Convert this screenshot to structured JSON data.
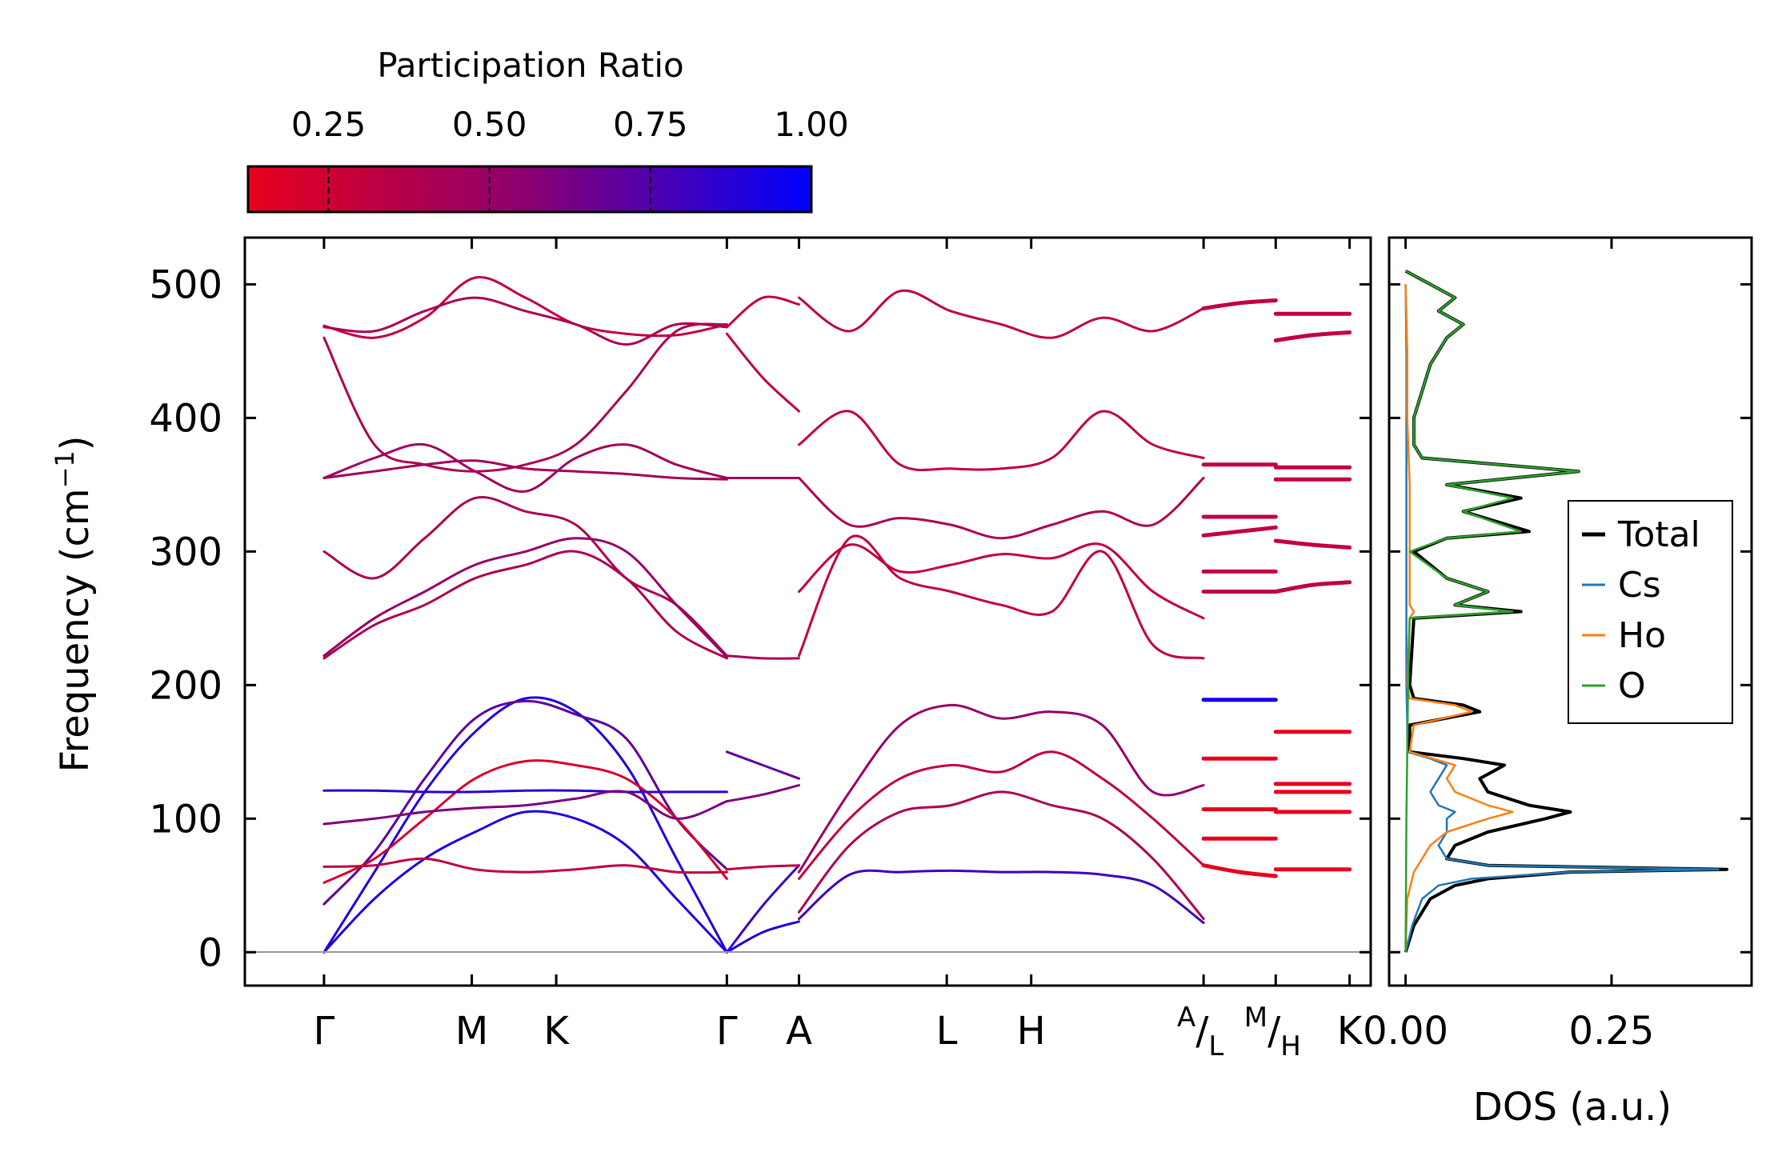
{
  "colorbar": {
    "title": "Participation Ratio",
    "range": [
      0.125,
      1.0
    ],
    "ticks": [
      0.25,
      0.5,
      0.75,
      1.0
    ],
    "tick_labels": [
      "0.25",
      "0.50",
      "0.75",
      "1.00"
    ],
    "colors": [
      "#e8001c",
      "#8a0070",
      "#0000ff"
    ]
  },
  "chart_data": [
    {
      "type": "line",
      "title": "",
      "ylabel": "Frequency (cm⁻¹)",
      "ylim": [
        -25,
        535
      ],
      "yticks": [
        0,
        100,
        200,
        300,
        400,
        500
      ],
      "ytick_labels": [
        "0",
        "100",
        "200",
        "300",
        "400",
        "500"
      ],
      "xlim": [
        -0.45,
        5.95
      ],
      "kpoints": [
        0.0,
        0.84,
        1.32,
        2.29,
        2.7,
        3.54,
        4.02,
        5.0,
        5.41,
        5.83
      ],
      "klabels": [
        {
          "main": "Γ"
        },
        {
          "main": "M"
        },
        {
          "main": "K"
        },
        {
          "main": "Γ"
        },
        {
          "main": "A"
        },
        {
          "main": "L"
        },
        {
          "main": "H"
        },
        {
          "sup": "A",
          "sub": "L"
        },
        {
          "sup": "M",
          "sub": "H"
        },
        {
          "main": "K"
        }
      ],
      "segments": [
        {
          "x": [
            0.0,
            2.29
          ],
          "bands": [
            {
              "pr": 0.3,
              "y": [
                469,
                460,
                475,
                505,
                490,
                470,
                463,
                462,
                470
              ]
            },
            {
              "pr": 0.4,
              "y": [
                468,
                465,
                480,
                490,
                480,
                470,
                455,
                470,
                468
              ]
            },
            {
              "pr": 0.4,
              "y": [
                460,
                380,
                365,
                360,
                365,
                380,
                420,
                465,
                470
              ]
            },
            {
              "pr": 0.45,
              "y": [
                355,
                360,
                365,
                368,
                362,
                360,
                358,
                355,
                354
              ]
            },
            {
              "pr": 0.45,
              "y": [
                355,
                370,
                380,
                360,
                345,
                370,
                380,
                365,
                355
              ]
            },
            {
              "pr": 0.4,
              "y": [
                300,
                280,
                310,
                340,
                330,
                320,
                280,
                260,
                222
              ]
            },
            {
              "pr": 0.5,
              "y": [
                222,
                250,
                270,
                290,
                300,
                310,
                300,
                260,
                221
              ]
            },
            {
              "pr": 0.4,
              "y": [
                220,
                245,
                260,
                280,
                290,
                300,
                280,
                240,
                220
              ]
            },
            {
              "pr": 0.9,
              "y": [
                0,
                60,
                120,
                165,
                190,
                180,
                140,
                70,
                0
              ]
            },
            {
              "pr": 0.9,
              "y": [
                0,
                40,
                70,
                90,
                105,
                100,
                80,
                40,
                0
              ]
            },
            {
              "pr": 0.7,
              "y": [
                36,
                75,
                130,
                175,
                188,
                178,
                160,
                100,
                62
              ]
            },
            {
              "pr": 0.2,
              "y": [
                52,
                70,
                100,
                130,
                143,
                140,
                130,
                100,
                55
              ]
            },
            {
              "pr": 0.3,
              "y": [
                64,
                65,
                70,
                62,
                60,
                62,
                65,
                60,
                60
              ]
            },
            {
              "pr": 0.85,
              "y": [
                121,
                121,
                120,
                120,
                121,
                121,
                120,
                120,
                120
              ]
            },
            {
              "pr": 0.6,
              "y": [
                96,
                100,
                105,
                108,
                110,
                115,
                120,
                100,
                113
              ]
            }
          ]
        },
        {
          "x": [
            2.29,
            2.7
          ],
          "bands": [
            {
              "pr": 0.3,
              "y": [
                468,
                490,
                485
              ]
            },
            {
              "pr": 0.3,
              "y": [
                463,
                430,
                405
              ]
            },
            {
              "pr": 0.45,
              "y": [
                355,
                355,
                355
              ]
            },
            {
              "pr": 0.4,
              "y": [
                222,
                220,
                220
              ]
            },
            {
              "pr": 0.7,
              "y": [
                150,
                140,
                130
              ]
            },
            {
              "pr": 0.6,
              "y": [
                113,
                118,
                125
              ]
            },
            {
              "pr": 0.9,
              "y": [
                0,
                15,
                23
              ]
            },
            {
              "pr": 0.8,
              "y": [
                0,
                35,
                65
              ]
            },
            {
              "pr": 0.3,
              "y": [
                62,
                64,
                65
              ]
            }
          ]
        },
        {
          "x": [
            2.7,
            5.0
          ],
          "bands": [
            {
              "pr": 0.3,
              "y": [
                490,
                465,
                495,
                480,
                470,
                460,
                475,
                465,
                482
              ]
            },
            {
              "pr": 0.3,
              "y": [
                380,
                405,
                365,
                362,
                362,
                370,
                405,
                380,
                370
              ]
            },
            {
              "pr": 0.4,
              "y": [
                355,
                320,
                325,
                320,
                310,
                320,
                330,
                320,
                355
              ]
            },
            {
              "pr": 0.3,
              "y": [
                270,
                305,
                285,
                290,
                298,
                295,
                305,
                270,
                250
              ]
            },
            {
              "pr": 0.3,
              "y": [
                222,
                310,
                280,
                270,
                260,
                255,
                300,
                230,
                220
              ]
            },
            {
              "pr": 0.5,
              "y": [
                60,
                120,
                170,
                185,
                175,
                180,
                170,
                120,
                125
              ]
            },
            {
              "pr": 0.3,
              "y": [
                55,
                100,
                130,
                140,
                135,
                150,
                130,
                100,
                65
              ]
            },
            {
              "pr": 0.4,
              "y": [
                30,
                80,
                105,
                110,
                120,
                110,
                100,
                70,
                25
              ]
            },
            {
              "pr": 0.8,
              "y": [
                25,
                58,
                60,
                61,
                60,
                60,
                58,
                50,
                22
              ]
            }
          ]
        },
        {
          "x": [
            5.0,
            5.41
          ],
          "bands": [
            {
              "pr": 0.3,
              "y": [
                482,
                486,
                488
              ]
            },
            {
              "pr": 0.3,
              "y": [
                365,
                365,
                365
              ]
            },
            {
              "pr": 0.3,
              "y": [
                326,
                326,
                326
              ]
            },
            {
              "pr": 0.3,
              "y": [
                312,
                315,
                318
              ]
            },
            {
              "pr": 0.3,
              "y": [
                285,
                285,
                285
              ]
            },
            {
              "pr": 0.3,
              "y": [
                270,
                270,
                270
              ]
            },
            {
              "pr": 0.95,
              "y": [
                189,
                189,
                189
              ]
            },
            {
              "pr": 0.1,
              "y": [
                145,
                145,
                145
              ]
            },
            {
              "pr": 0.1,
              "y": [
                107,
                107,
                107
              ]
            },
            {
              "pr": 0.1,
              "y": [
                85,
                85,
                85
              ]
            },
            {
              "pr": 0.1,
              "y": [
                65,
                60,
                57
              ]
            }
          ]
        },
        {
          "x": [
            5.41,
            5.83
          ],
          "bands": [
            {
              "pr": 0.3,
              "y": [
                478,
                478,
                478
              ]
            },
            {
              "pr": 0.3,
              "y": [
                458,
                462,
                464
              ]
            },
            {
              "pr": 0.3,
              "y": [
                363,
                363,
                363
              ]
            },
            {
              "pr": 0.3,
              "y": [
                354,
                354,
                354
              ]
            },
            {
              "pr": 0.3,
              "y": [
                308,
                305,
                303
              ]
            },
            {
              "pr": 0.3,
              "y": [
                270,
                275,
                277
              ]
            },
            {
              "pr": 0.1,
              "y": [
                165,
                165,
                165
              ]
            },
            {
              "pr": 0.1,
              "y": [
                126,
                126,
                126
              ]
            },
            {
              "pr": 0.1,
              "y": [
                120,
                120,
                120
              ]
            },
            {
              "pr": 0.1,
              "y": [
                105,
                105,
                105
              ]
            },
            {
              "pr": 0.1,
              "y": [
                62,
                62,
                62
              ]
            }
          ]
        }
      ]
    },
    {
      "type": "line",
      "xlabel": "DOS (a.u.)",
      "xlim": [
        -0.02,
        0.42
      ],
      "xticks": [
        0.0,
        0.25
      ],
      "xtick_labels": [
        "0.00",
        "0.25"
      ],
      "ylim": [
        -25,
        535
      ],
      "legend_position": "center-right",
      "series": [
        {
          "name": "Total",
          "color": "#000000",
          "y": [
            0,
            20,
            40,
            50,
            55,
            60,
            62,
            65,
            70,
            80,
            90,
            100,
            105,
            110,
            120,
            130,
            140,
            145,
            150,
            170,
            180,
            185,
            190,
            200,
            250,
            255,
            260,
            270,
            280,
            300,
            310,
            315,
            330,
            340,
            350,
            360,
            370,
            380,
            400,
            420,
            440,
            460,
            470,
            480,
            490,
            500,
            510
          ],
          "x": [
            0.0,
            0.01,
            0.03,
            0.06,
            0.1,
            0.2,
            0.39,
            0.1,
            0.05,
            0.06,
            0.1,
            0.17,
            0.2,
            0.15,
            0.1,
            0.09,
            0.12,
            0.07,
            0.005,
            0.005,
            0.09,
            0.07,
            0.01,
            0.005,
            0.01,
            0.14,
            0.06,
            0.1,
            0.05,
            0.01,
            0.05,
            0.15,
            0.07,
            0.14,
            0.05,
            0.21,
            0.02,
            0.01,
            0.01,
            0.02,
            0.03,
            0.05,
            0.07,
            0.04,
            0.06,
            0.03,
            0.0
          ]
        },
        {
          "name": "Cs",
          "color": "#1f77b4",
          "y": [
            0,
            20,
            40,
            50,
            55,
            60,
            62,
            65,
            70,
            80,
            90,
            100,
            105,
            110,
            120,
            130,
            140,
            145,
            150,
            170,
            200,
            250,
            300,
            350,
            400,
            450,
            500
          ],
          "x": [
            0.0,
            0.008,
            0.02,
            0.04,
            0.08,
            0.2,
            0.38,
            0.1,
            0.05,
            0.04,
            0.05,
            0.05,
            0.06,
            0.04,
            0.03,
            0.04,
            0.05,
            0.03,
            0.002,
            0.002,
            0.001,
            0.001,
            0.001,
            0.001,
            0.001,
            0.001,
            0.0
          ]
        },
        {
          "name": "Ho",
          "color": "#ff7f0e",
          "y": [
            0,
            40,
            60,
            70,
            80,
            90,
            100,
            105,
            110,
            120,
            130,
            140,
            150,
            170,
            180,
            185,
            190,
            200,
            250,
            255,
            260,
            300,
            350,
            400,
            450,
            500
          ],
          "x": [
            0.0,
            0.002,
            0.01,
            0.02,
            0.03,
            0.05,
            0.1,
            0.13,
            0.1,
            0.06,
            0.05,
            0.06,
            0.005,
            0.01,
            0.08,
            0.06,
            0.005,
            0.002,
            0.005,
            0.01,
            0.005,
            0.005,
            0.005,
            0.002,
            0.002,
            0.0
          ]
        },
        {
          "name": "O",
          "color": "#2ca02c",
          "y": [
            0,
            100,
            150,
            200,
            250,
            255,
            260,
            270,
            280,
            300,
            310,
            315,
            330,
            340,
            350,
            360,
            370,
            380,
            400,
            420,
            440,
            460,
            470,
            480,
            490,
            500,
            510
          ],
          "x": [
            0.0,
            0.001,
            0.002,
            0.003,
            0.005,
            0.13,
            0.06,
            0.1,
            0.05,
            0.005,
            0.05,
            0.14,
            0.07,
            0.13,
            0.05,
            0.21,
            0.02,
            0.01,
            0.01,
            0.02,
            0.03,
            0.05,
            0.07,
            0.04,
            0.06,
            0.03,
            0.0
          ]
        }
      ]
    }
  ]
}
